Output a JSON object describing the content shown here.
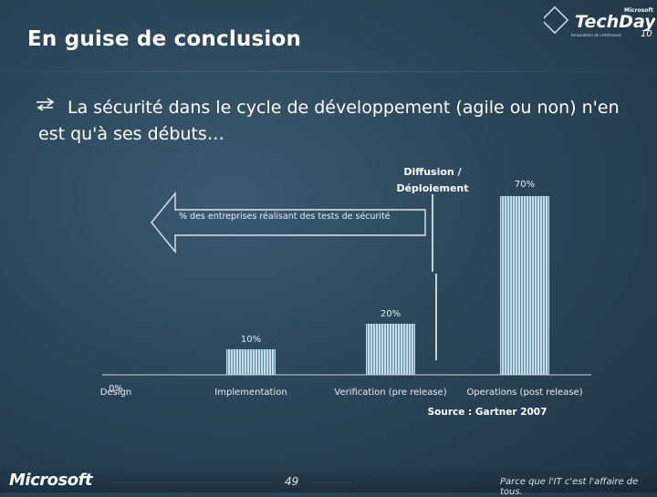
{
  "slide": {
    "title": "En guise de conclusion",
    "bullet": "La sécurité dans le cycle de développement (agile ou non) n'en est qu'à ses débuts…",
    "page_number": "49",
    "footer_brand": "Microsoft",
    "footer_slogan": "Parce que l'IT c'est l'affaire de tous.",
    "logo": {
      "brand": "Microsoft",
      "name": "TechDays",
      "year": "10",
      "tagline": "Innovation et cohérence"
    }
  },
  "annotations": {
    "deployment_label_line1": "Diffusion /",
    "deployment_label_line2": "Déploiement",
    "arrow_text": "% des entreprises réalisant des tests de sécurité",
    "source": "Source : Gartner 2007"
  },
  "colors": {
    "bar_fill": "#c9dde6",
    "bar_stripe": "#5a87a0",
    "axis": "#c8d3db",
    "text_light": "#ffffff",
    "arrow_stroke": "#dfe6ec"
  },
  "chart_data": {
    "type": "bar",
    "categories": [
      "Design",
      "Implementation",
      "Verification (pre release)",
      "Operations (post release)"
    ],
    "values": [
      0,
      10,
      20,
      70
    ],
    "value_labels": [
      "0%",
      "10%",
      "20%",
      "70%"
    ],
    "ylim": [
      0,
      80
    ],
    "grid": false,
    "legend": "none"
  }
}
